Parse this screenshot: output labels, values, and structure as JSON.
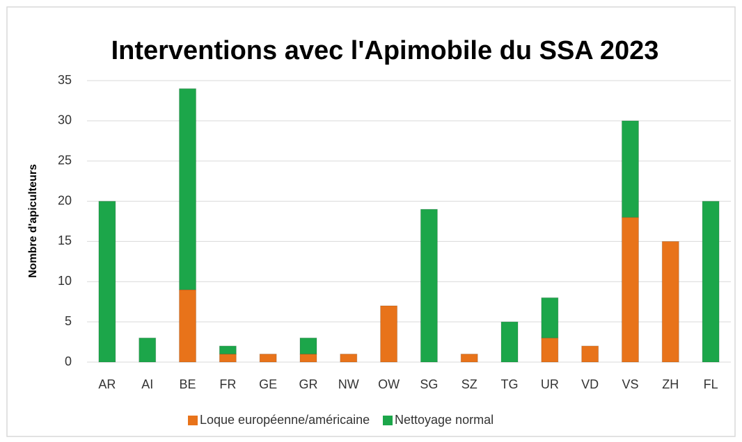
{
  "chart_data": {
    "type": "stacked_bar",
    "title": "Interventions avec l'Apimobile du SSA 2023",
    "y_label": "Nombre d'apiculteurs",
    "categories": [
      "AR",
      "AI",
      "BE",
      "FR",
      "GE",
      "GR",
      "NW",
      "OW",
      "SG",
      "SZ",
      "TG",
      "UR",
      "VD",
      "VS",
      "ZH",
      "FL"
    ],
    "series": [
      {
        "name": "Loque européenne/américaine",
        "color": "#e8731a",
        "values": [
          0,
          0,
          9,
          1,
          1,
          1,
          1,
          7,
          0,
          1,
          0,
          3,
          2,
          18,
          15,
          0
        ]
      },
      {
        "name": "Nettoyage normal",
        "color": "#1ca64a",
        "values": [
          20,
          3,
          25,
          1,
          0,
          2,
          0,
          0,
          19,
          0,
          5,
          5,
          0,
          12,
          0,
          20
        ]
      }
    ],
    "ylim": [
      0,
      35
    ],
    "yticks": [
      0,
      5,
      10,
      15,
      20,
      25,
      30,
      35
    ],
    "grid": true,
    "legend": "bottom"
  }
}
